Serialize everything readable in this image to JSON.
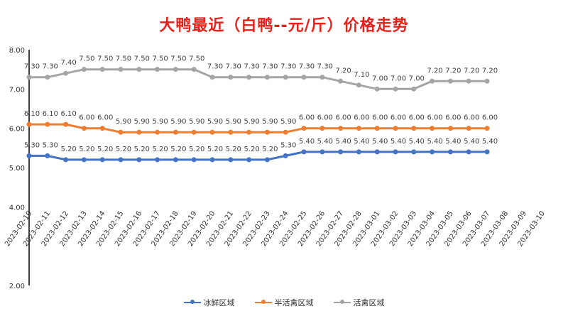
{
  "chart_data": {
    "type": "line",
    "title": "大鸭最近（白鸭--元/斤）价格走势",
    "xlabel": "",
    "ylabel": "",
    "ylim": [
      2.0,
      8.0
    ],
    "yticks": [
      "2.00",
      "4.00",
      "5.00",
      "6.00",
      "7.00",
      "8.00"
    ],
    "categories": [
      "2023-02-10",
      "2023-02-11",
      "2023-02-12",
      "2023-02-13",
      "2023-02-14",
      "2023-02-15",
      "2023-02-16",
      "2023-02-17",
      "2023-02-18",
      "2023-02-19",
      "2023-02-20",
      "2023-02-21",
      "2023-02-22",
      "2023-02-23",
      "2023-02-24",
      "2023-02-25",
      "2023-02-26",
      "2023-02-27",
      "2023-02-28",
      "2023-03-01",
      "2023-03-02",
      "2023-03-03",
      "2023-03-04",
      "2023-03-05",
      "2023-03-06",
      "2023-03-07",
      "2023-03-08",
      "2023-03-09",
      "2023-03-10"
    ],
    "series": [
      {
        "name": "冰鲜区域",
        "color": "#4472c4",
        "values": [
          5.3,
          5.3,
          5.2,
          5.2,
          5.2,
          5.2,
          5.2,
          5.2,
          5.2,
          5.2,
          5.2,
          5.2,
          5.2,
          5.2,
          5.3,
          5.4,
          5.4,
          5.4,
          5.4,
          5.4,
          5.4,
          5.4,
          5.4,
          5.4,
          5.4,
          5.4,
          null,
          null,
          null
        ]
      },
      {
        "name": "半活禽区域",
        "color": "#ed7d31",
        "values": [
          6.1,
          6.1,
          6.1,
          6.0,
          6.0,
          5.9,
          5.9,
          5.9,
          5.9,
          5.9,
          5.9,
          5.9,
          5.9,
          5.9,
          5.9,
          6.0,
          6.0,
          6.0,
          6.0,
          6.0,
          6.0,
          6.0,
          6.0,
          6.0,
          6.0,
          6.0,
          null,
          null,
          null
        ]
      },
      {
        "name": "活禽区域",
        "color": "#a5a5a5",
        "values": [
          7.3,
          7.3,
          7.4,
          7.5,
          7.5,
          7.5,
          7.5,
          7.5,
          7.5,
          7.5,
          7.3,
          7.3,
          7.3,
          7.3,
          7.3,
          7.3,
          7.3,
          7.2,
          7.1,
          7.0,
          7.0,
          7.0,
          7.2,
          7.2,
          7.2,
          7.2,
          null,
          null,
          null
        ]
      }
    ],
    "legend": "bottom",
    "grid": false
  }
}
